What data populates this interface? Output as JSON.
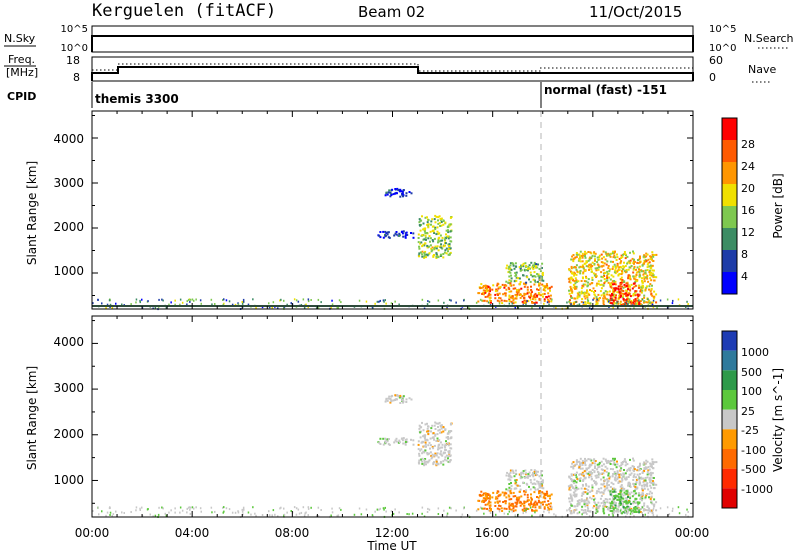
{
  "header": {
    "station": "Kerguelen (fitACF)",
    "beam": "Beam 02",
    "date": "11/Oct/2015"
  },
  "panels": {
    "nsky": {
      "left_label": "N.Sky",
      "left_ticks": [
        "10^5",
        "10^0"
      ],
      "right_label": "N.Search",
      "right_ticks": [
        "10^5",
        "10^0"
      ]
    },
    "freq": {
      "left_label_1": "Freq.",
      "left_label_2": "[MHz]",
      "left_ticks": [
        "18",
        "8"
      ],
      "right_label": "Nave",
      "right_ticks": [
        "60",
        "0"
      ]
    },
    "cpid": {
      "label": "CPID",
      "segments": [
        "themis 3300",
        "normal (fast) -151"
      ]
    }
  },
  "x_axis": {
    "label": "Time UT",
    "ticks": [
      "00:00",
      "04:00",
      "08:00",
      "12:00",
      "16:00",
      "20:00",
      "00:00"
    ]
  },
  "power_panel": {
    "ylabel": "Slant Range [km]",
    "yticks": [
      "1000",
      "2000",
      "3000",
      "4000"
    ],
    "colorbar_label": "Power [dB]",
    "colorbar_ticks": [
      "4",
      "8",
      "12",
      "16",
      "20",
      "24",
      "28"
    ],
    "colors": [
      "#0000ff",
      "#1e3ca8",
      "#3c8c64",
      "#7ec850",
      "#f0e000",
      "#ff9600",
      "#ff5a00",
      "#ff0000"
    ]
  },
  "velocity_panel": {
    "ylabel": "Slant Range [km]",
    "yticks": [
      "1000",
      "2000",
      "3000",
      "4000"
    ],
    "colorbar_label": "Velocity [m s^-1]",
    "colorbar_ticks": [
      "1000",
      "500",
      "100",
      "25",
      "-25",
      "-100",
      "-500",
      "-1000"
    ],
    "colors": [
      "#1e3cb4",
      "#2f7a9c",
      "#2e9a4a",
      "#5cc83c",
      "#c8c8c8",
      "#ff9a00",
      "#ff6a00",
      "#ff2a00",
      "#e00000"
    ]
  },
  "chart_data": [
    {
      "type": "line",
      "title": "N.Sky / N.Search",
      "x": [
        "00:00",
        "00:55",
        "01:00",
        "23:55",
        "24:00"
      ],
      "ylim": [
        0,
        100000
      ],
      "series": [
        {
          "name": "N.Sky",
          "values": [
            0,
            0,
            60000,
            60000,
            0
          ]
        }
      ]
    },
    {
      "type": "line",
      "title": "Freq. / Nave",
      "x": [
        "00:00",
        "00:55",
        "01:00",
        "12:55",
        "13:00",
        "23:55",
        "24:00"
      ],
      "ylim": [
        8,
        18
      ],
      "series": [
        {
          "name": "Freq. [MHz]",
          "values": [
            10,
            10,
            12,
            12,
            10,
            10,
            8
          ]
        },
        {
          "name": "Nave",
          "values": [
            30,
            30,
            32,
            32,
            28,
            33,
            33
          ]
        }
      ]
    },
    {
      "type": "heatmap",
      "title": "Power [dB]",
      "xlim": [
        "00:00",
        "24:00"
      ],
      "ylim": [
        200,
        4600
      ],
      "scale": [
        0,
        30
      ],
      "regions": [
        {
          "start": "11:35",
          "end": "12:45",
          "range_lo": 2700,
          "range_hi": 2900,
          "value": 4
        },
        {
          "start": "11:20",
          "end": "12:50",
          "range_lo": 1800,
          "range_hi": 1950,
          "value": 4
        },
        {
          "start": "13:00",
          "end": "14:20",
          "range_lo": 1350,
          "range_hi": 2300,
          "value": 14
        },
        {
          "start": "15:20",
          "end": "18:20",
          "range_lo": 350,
          "range_hi": 800,
          "value": 22
        },
        {
          "start": "16:30",
          "end": "18:00",
          "range_lo": 800,
          "range_hi": 1250,
          "value": 12
        },
        {
          "start": "19:00",
          "end": "22:30",
          "range_lo": 300,
          "range_hi": 1500,
          "value": 18
        },
        {
          "start": "20:40",
          "end": "21:50",
          "range_lo": 300,
          "range_hi": 800,
          "value": 28
        }
      ]
    },
    {
      "type": "heatmap",
      "title": "Velocity [m s^-1]",
      "xlim": [
        "00:00",
        "24:00"
      ],
      "ylim": [
        200,
        4600
      ],
      "scale": [
        -1000,
        1000
      ],
      "regions": [
        {
          "start": "11:35",
          "end": "12:45",
          "range_lo": 2700,
          "range_hi": 2900,
          "value": 0
        },
        {
          "start": "11:20",
          "end": "12:50",
          "range_lo": 1800,
          "range_hi": 1950,
          "value": 0
        },
        {
          "start": "13:00",
          "end": "14:20",
          "range_lo": 1350,
          "range_hi": 2300,
          "value": 0
        },
        {
          "start": "15:20",
          "end": "18:20",
          "range_lo": 350,
          "range_hi": 800,
          "value": -100
        },
        {
          "start": "16:30",
          "end": "18:00",
          "range_lo": 800,
          "range_hi": 1250,
          "value": 0
        },
        {
          "start": "19:00",
          "end": "22:30",
          "range_lo": 300,
          "range_hi": 1500,
          "value": 0
        },
        {
          "start": "20:40",
          "end": "21:50",
          "range_lo": 300,
          "range_hi": 800,
          "value": 80
        }
      ]
    }
  ]
}
